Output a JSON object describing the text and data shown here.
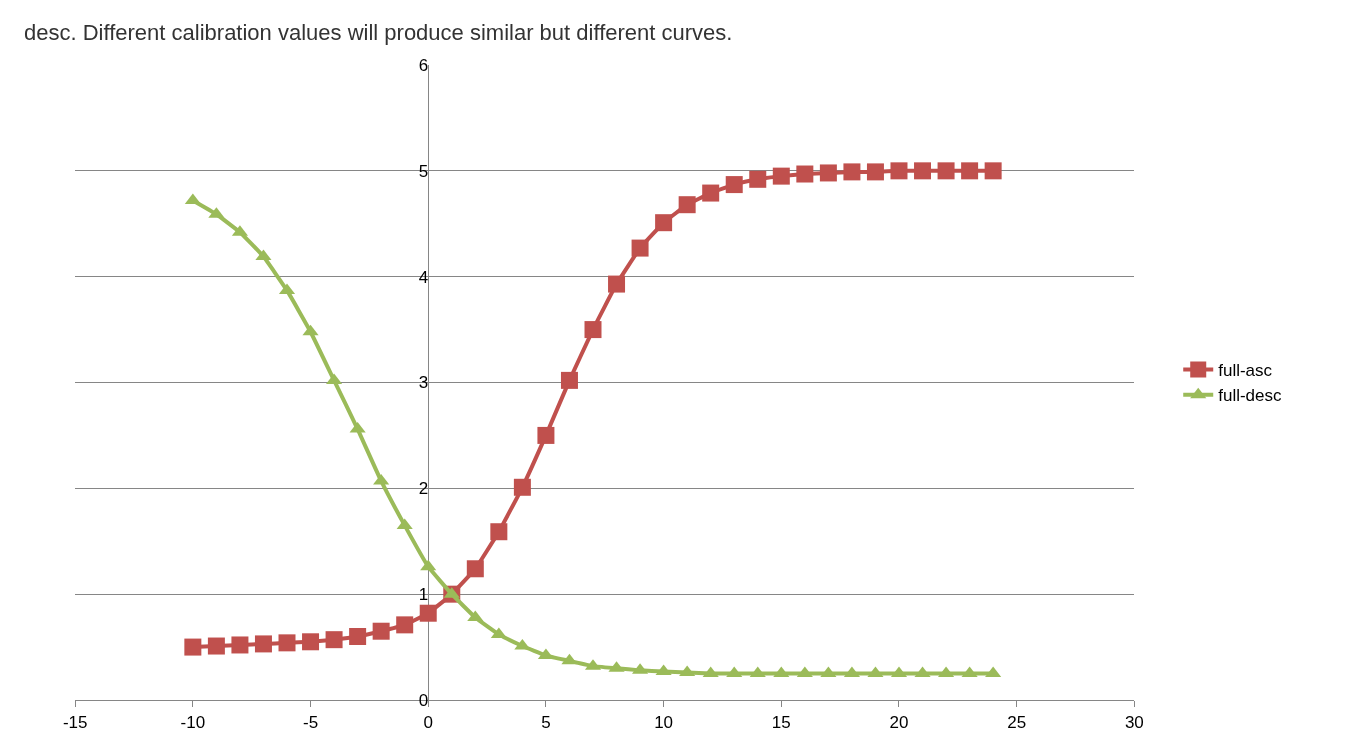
{
  "chart_data": {
    "type": "line",
    "annotations": [
      "desc. Different calibration values will produce similar but different curves."
    ],
    "x": [
      -10,
      -9,
      -8,
      -7,
      -6,
      -5,
      -4,
      -3,
      -2,
      -1,
      0,
      1,
      2,
      3,
      4,
      5,
      6,
      7,
      8,
      9,
      10,
      11,
      12,
      13,
      14,
      15,
      16,
      17,
      18,
      19,
      20,
      21,
      22,
      23,
      24
    ],
    "series": [
      {
        "name": "full-asc",
        "color": "#c0504d",
        "marker": "square",
        "values": [
          0.5,
          0.51,
          0.52,
          0.53,
          0.54,
          0.55,
          0.57,
          0.6,
          0.65,
          0.71,
          0.82,
          1.0,
          1.24,
          1.59,
          2.01,
          2.5,
          3.02,
          3.5,
          3.93,
          4.27,
          4.51,
          4.68,
          4.79,
          4.87,
          4.92,
          4.95,
          4.97,
          4.98,
          4.99,
          4.99,
          5.0,
          5.0,
          5.0,
          5.0,
          5.0
        ]
      },
      {
        "name": "full-desc",
        "color": "#9bbb59",
        "marker": "triangle",
        "values": [
          4.72,
          4.59,
          4.42,
          4.19,
          3.87,
          3.48,
          3.02,
          2.56,
          2.07,
          1.65,
          1.26,
          1.0,
          0.78,
          0.62,
          0.51,
          0.42,
          0.37,
          0.32,
          0.3,
          0.28,
          0.27,
          0.26,
          0.25,
          0.25,
          0.25,
          0.25,
          0.25,
          0.25,
          0.25,
          0.25,
          0.25,
          0.25,
          0.25,
          0.25,
          0.25
        ]
      }
    ],
    "xlim": [
      -15,
      30
    ],
    "xticks": [
      -15,
      -10,
      -5,
      0,
      5,
      10,
      15,
      20,
      25,
      30
    ],
    "ylim": [
      0,
      6
    ],
    "yticks": [
      0,
      1,
      2,
      3,
      4,
      5,
      6
    ],
    "grid": "y",
    "legend": "right",
    "line_style": "solid"
  }
}
